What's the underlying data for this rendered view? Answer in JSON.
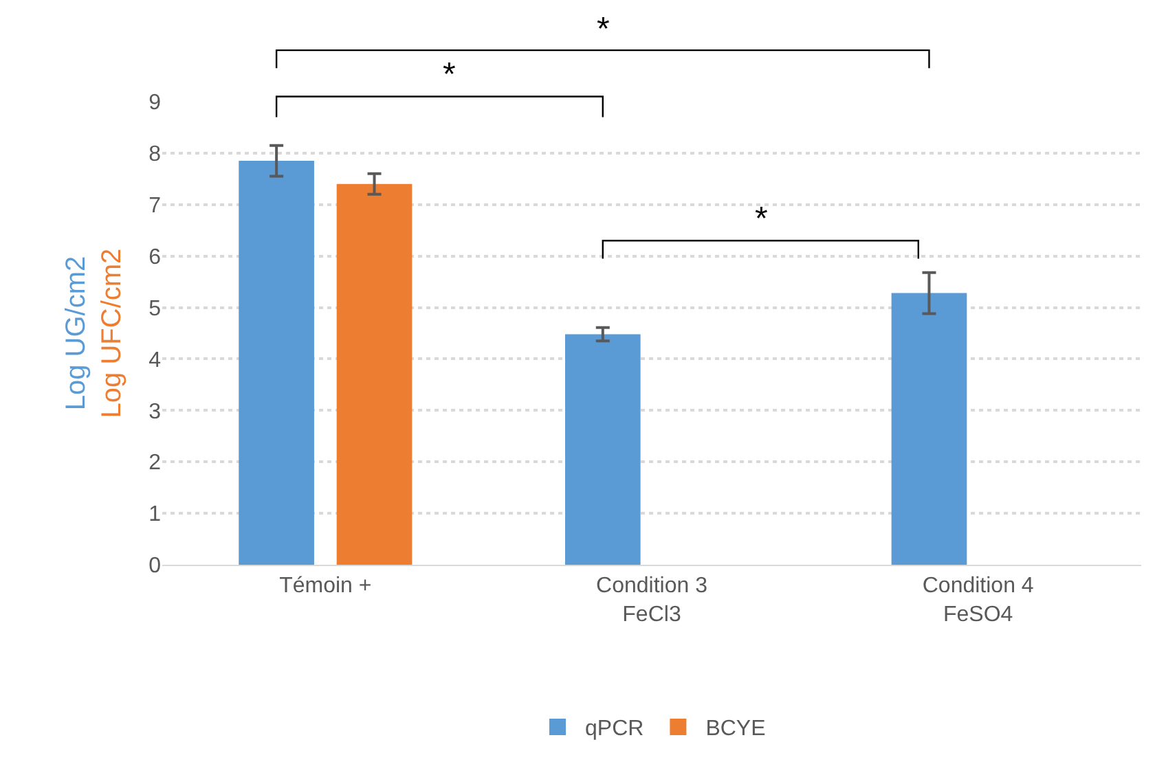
{
  "chart_data": {
    "type": "bar",
    "categories": [
      "Témoin +",
      "Condition 3\nFeCl3",
      "Condition 4\nFeSO4"
    ],
    "series": [
      {
        "name": "qPCR",
        "color": "#5b9bd5",
        "values": [
          7.85,
          4.48,
          5.28
        ],
        "errors": [
          0.3,
          0.13,
          0.4
        ]
      },
      {
        "name": "BCYE",
        "color": "#ed7d31",
        "values": [
          7.4,
          null,
          null
        ],
        "errors": [
          0.2,
          null,
          null
        ]
      }
    ],
    "ylabel": "Log UG/cm2\nLog UFC/cm2",
    "ylim": [
      0,
      9
    ],
    "yticks": [
      0,
      1,
      2,
      3,
      4,
      5,
      6,
      7,
      8,
      9
    ],
    "grid": "y",
    "legend": "bottom",
    "annotations": [
      "*",
      "*",
      "*"
    ]
  }
}
